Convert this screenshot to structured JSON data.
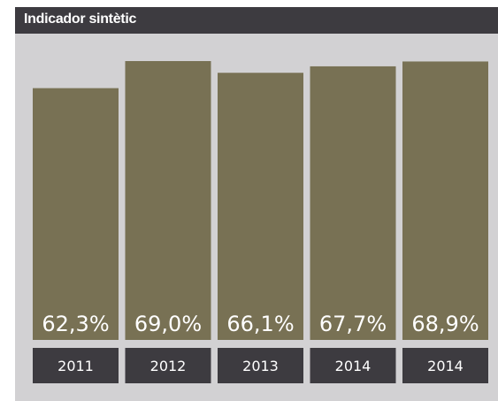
{
  "title": "Indicador sintètic",
  "colors": {
    "panel_background": "#d2d1d3",
    "title_bar": "#3d3b40",
    "bar": "#787154",
    "category_box": "#3d3b40",
    "text": "#ffffff"
  },
  "chart_data": {
    "type": "bar",
    "title": "Indicador sintètic",
    "categories": [
      "2011",
      "2012",
      "2013",
      "2014",
      "2014"
    ],
    "values": [
      62.3,
      69.0,
      66.1,
      67.7,
      68.9
    ],
    "value_labels": [
      "62,3%",
      "69,0%",
      "66,1%",
      "67,7%",
      "68,9%"
    ],
    "unit": "%",
    "ylim": [
      0,
      69.0
    ],
    "grid": false,
    "legend": "none"
  }
}
